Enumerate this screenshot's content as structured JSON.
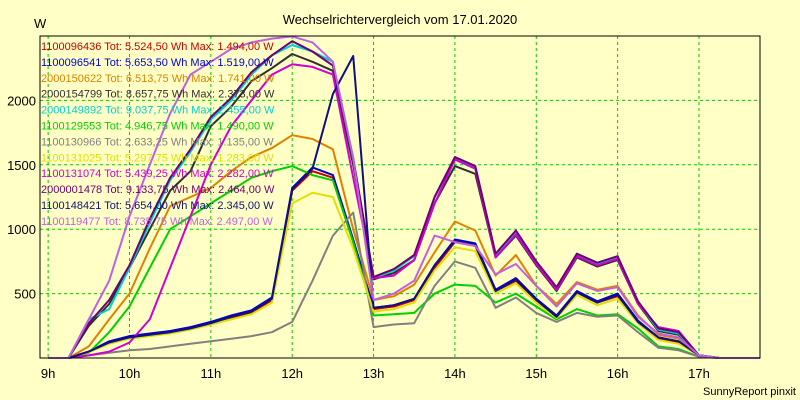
{
  "chart_data": {
    "type": "line",
    "title": "Wechselrichtervergleich vom 17.01.2020",
    "ylabel": "W",
    "footer": "SunnyReport pinxit",
    "grid": true,
    "ylim": [
      0,
      2500
    ],
    "xlim": [
      8.9,
      17.75
    ],
    "yticks": [
      500,
      1000,
      1500,
      2000
    ],
    "xticks": [
      {
        "value": 9,
        "label": "9h"
      },
      {
        "value": 10,
        "label": "10h"
      },
      {
        "value": 11,
        "label": "11h"
      },
      {
        "value": 12,
        "label": "12h"
      },
      {
        "value": 13,
        "label": "13h"
      },
      {
        "value": 14,
        "label": "14h"
      },
      {
        "value": 15,
        "label": "15h"
      },
      {
        "value": 16,
        "label": "16h"
      },
      {
        "value": 17,
        "label": "17h"
      }
    ],
    "legend_position": "top-left",
    "x": [
      9.0,
      9.25,
      9.5,
      9.75,
      10.0,
      10.25,
      10.5,
      10.75,
      11.0,
      11.25,
      11.5,
      11.75,
      12.0,
      12.25,
      12.5,
      12.75,
      13.0,
      13.25,
      13.5,
      13.75,
      14.0,
      14.25,
      14.5,
      14.75,
      15.0,
      15.25,
      15.5,
      15.75,
      16.0,
      16.25,
      16.5,
      16.75,
      17.0,
      17.25,
      17.5,
      17.75
    ],
    "series": [
      {
        "name": "1100096436 Tot: 5.524,50 Wh Max: 1.494,00 W",
        "color": "#c80000",
        "values": [
          0,
          0,
          50,
          120,
          160,
          180,
          200,
          230,
          270,
          310,
          350,
          450,
          1300,
          1450,
          1400,
          900,
          380,
          400,
          450,
          700,
          900,
          870,
          520,
          600,
          450,
          320,
          510,
          430,
          480,
          280,
          150,
          120,
          20,
          0,
          0,
          0
        ]
      },
      {
        "name": "1100096541 Tot: 5.653,50 Wh Max: 1.519,00 W",
        "color": "#0000d0",
        "values": [
          0,
          0,
          50,
          130,
          170,
          190,
          210,
          240,
          280,
          330,
          370,
          470,
          1320,
          1480,
          1420,
          920,
          390,
          410,
          460,
          720,
          920,
          890,
          530,
          620,
          460,
          330,
          520,
          440,
          500,
          290,
          160,
          130,
          20,
          0,
          0,
          0
        ]
      },
      {
        "name": "2000150622 Tot: 6.513,75 Wh Max: 1.741,00 W",
        "color": "#e08000",
        "values": [
          0,
          0,
          90,
          300,
          500,
          850,
          1180,
          1250,
          1320,
          1450,
          1560,
          1630,
          1730,
          1700,
          1620,
          1000,
          450,
          480,
          570,
          820,
          1060,
          990,
          640,
          800,
          560,
          420,
          590,
          530,
          560,
          330,
          180,
          150,
          20,
          0,
          0,
          0
        ]
      },
      {
        "name": "2000154799 Tot: 8.657,75 Wh Max: 2.373,00 W",
        "color": "#303030",
        "values": [
          0,
          0,
          250,
          420,
          700,
          1000,
          1300,
          1450,
          1800,
          1950,
          2150,
          2250,
          2360,
          2300,
          2230,
          1500,
          610,
          660,
          760,
          1200,
          1490,
          1430,
          780,
          950,
          720,
          520,
          780,
          710,
          760,
          420,
          210,
          180,
          20,
          0,
          0,
          0
        ]
      },
      {
        "name": "2000149892 Tot: 9.037,75 Wh Max: 2.455,00 W",
        "color": "#00d0d0",
        "values": [
          0,
          0,
          300,
          380,
          700,
          1050,
          1380,
          1600,
          1850,
          2000,
          2200,
          2350,
          2430,
          2380,
          2300,
          1550,
          620,
          680,
          790,
          1250,
          1550,
          1480,
          800,
          980,
          740,
          540,
          800,
          730,
          780,
          430,
          220,
          190,
          20,
          0,
          0,
          0
        ]
      },
      {
        "name": "1100129553 Tot: 4.946,75 Wh Max: 1.490,00 W",
        "color": "#00d000",
        "values": [
          0,
          0,
          40,
          200,
          400,
          700,
          1000,
          1100,
          1200,
          1300,
          1400,
          1450,
          1490,
          1420,
          1380,
          900,
          330,
          340,
          350,
          500,
          570,
          560,
          430,
          500,
          400,
          300,
          380,
          330,
          340,
          230,
          90,
          70,
          10,
          0,
          0,
          0
        ]
      },
      {
        "name": "1100130966 Tot: 2.633,25 Wh Max: 1.135,00 W",
        "color": "#808080",
        "values": [
          0,
          0,
          20,
          40,
          60,
          70,
          90,
          110,
          130,
          150,
          170,
          200,
          280,
          600,
          950,
          1130,
          240,
          260,
          270,
          560,
          750,
          700,
          390,
          470,
          350,
          280,
          350,
          320,
          330,
          200,
          80,
          60,
          10,
          0,
          0,
          0
        ]
      },
      {
        "name": "1100131025 Tot: 5.297,75 Wh Max: 1.283,00 W",
        "color": "#e0e000",
        "values": [
          0,
          0,
          45,
          110,
          150,
          170,
          190,
          220,
          260,
          300,
          340,
          430,
          1200,
          1283,
          1250,
          850,
          360,
          380,
          430,
          680,
          860,
          830,
          500,
          580,
          430,
          310,
          490,
          410,
          460,
          270,
          140,
          110,
          20,
          0,
          0,
          0
        ]
      },
      {
        "name": "1100131074 Tot: 5.439,25 Wh Max: 2.282,00 W",
        "color": "#d000d0",
        "values": [
          0,
          0,
          20,
          50,
          120,
          300,
          700,
          1100,
          1500,
          1800,
          2000,
          2200,
          2280,
          2260,
          2200,
          1400,
          620,
          640,
          760,
          1200,
          1540,
          1470,
          780,
          960,
          730,
          530,
          790,
          720,
          770,
          420,
          240,
          210,
          20,
          0,
          0,
          0
        ]
      },
      {
        "name": "2000001478 Tot: 9.133,75 Wh Max: 2.464,00 W",
        "color": "#700070",
        "values": [
          0,
          0,
          270,
          450,
          720,
          1080,
          1400,
          1620,
          1870,
          2020,
          2220,
          2350,
          2460,
          2380,
          2270,
          1550,
          630,
          690,
          800,
          1250,
          1560,
          1490,
          810,
          990,
          750,
          550,
          810,
          740,
          790,
          440,
          230,
          200,
          20,
          0,
          0,
          0
        ]
      },
      {
        "name": "1100148421 Tot: 5.654,00 Wh Max: 2.345,00 W",
        "color": "#101080",
        "values": [
          0,
          0,
          50,
          120,
          160,
          180,
          200,
          230,
          270,
          320,
          360,
          460,
          1310,
          1470,
          2050,
          2345,
          390,
          410,
          460,
          720,
          910,
          880,
          520,
          610,
          450,
          320,
          510,
          430,
          490,
          280,
          160,
          130,
          20,
          0,
          0,
          0
        ]
      },
      {
        "name": "1100119477 Tot: 8.735,75 Wh Max: 2.497,00 W",
        "color": "#c060e0",
        "values": [
          0,
          0,
          300,
          600,
          1100,
          1500,
          1900,
          2200,
          2300,
          2400,
          2450,
          2480,
          2497,
          2450,
          2300,
          1550,
          450,
          500,
          600,
          950,
          900,
          870,
          650,
          730,
          560,
          400,
          580,
          520,
          550,
          320,
          190,
          160,
          20,
          0,
          0,
          0
        ]
      }
    ]
  }
}
